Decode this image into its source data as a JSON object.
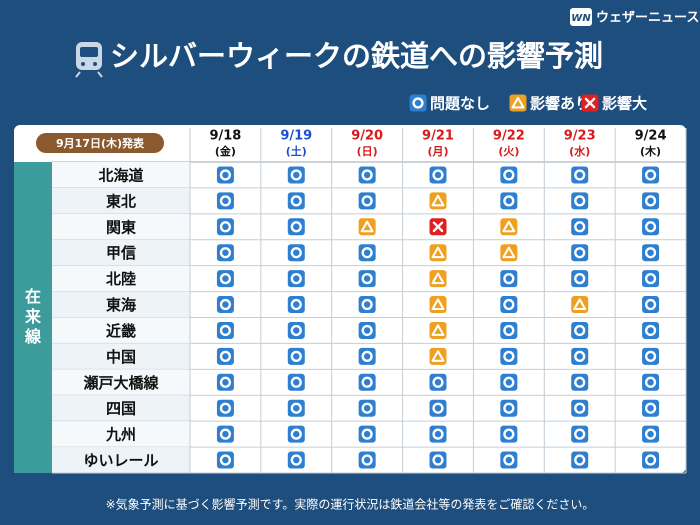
{
  "header": {
    "brand_logo": "WN",
    "brand": "ウェザーニュース",
    "title": "シルバーウィークの鉄道への影響予測"
  },
  "legend": [
    {
      "label": "問題なし",
      "color": "#2f7fd0"
    },
    {
      "label": "影響あり",
      "color": "#f0a020"
    },
    {
      "label": "影響大",
      "color": "#e02020"
    }
  ],
  "table": {
    "issued": "9月17日(木)発表",
    "section": "在来線",
    "columns": [
      {
        "date": "9/18",
        "weekday": "(金)",
        "color": "#111111"
      },
      {
        "date": "9/19",
        "weekday": "(土)",
        "color": "#1a4fd0"
      },
      {
        "date": "9/20",
        "weekday": "(日)",
        "color": "#d81a1a"
      },
      {
        "date": "9/21",
        "weekday": "(月)",
        "color": "#d81a1a"
      },
      {
        "date": "9/22",
        "weekday": "(火)",
        "color": "#d81a1a"
      },
      {
        "date": "9/23",
        "weekday": "(水)",
        "color": "#d81a1a"
      },
      {
        "date": "9/24",
        "weekday": "(木)",
        "color": "#111111"
      }
    ],
    "rows": [
      {
        "name": "北海道",
        "cells": [
          "問題なし",
          "問題なし",
          "問題なし",
          "問題なし",
          "問題なし",
          "問題なし",
          "問題なし"
        ]
      },
      {
        "name": "東北",
        "cells": [
          "問題なし",
          "問題なし",
          "問題なし",
          "影響あり",
          "問題なし",
          "問題なし",
          "問題なし"
        ]
      },
      {
        "name": "関東",
        "cells": [
          "問題なし",
          "問題なし",
          "影響あり",
          "影響大",
          "影響あり",
          "問題なし",
          "問題なし"
        ]
      },
      {
        "name": "甲信",
        "cells": [
          "問題なし",
          "問題なし",
          "問題なし",
          "影響あり",
          "影響あり",
          "問題なし",
          "問題なし"
        ]
      },
      {
        "name": "北陸",
        "cells": [
          "問題なし",
          "問題なし",
          "問題なし",
          "影響あり",
          "問題なし",
          "問題なし",
          "問題なし"
        ]
      },
      {
        "name": "東海",
        "cells": [
          "問題なし",
          "問題なし",
          "問題なし",
          "影響あり",
          "問題なし",
          "影響あり",
          "問題なし"
        ]
      },
      {
        "name": "近畿",
        "cells": [
          "問題なし",
          "問題なし",
          "問題なし",
          "影響あり",
          "問題なし",
          "問題なし",
          "問題なし"
        ]
      },
      {
        "name": "中国",
        "cells": [
          "問題なし",
          "問題なし",
          "問題なし",
          "影響あり",
          "問題なし",
          "問題なし",
          "問題なし"
        ]
      },
      {
        "name": "瀬戸大橋線",
        "cells": [
          "問題なし",
          "問題なし",
          "問題なし",
          "問題なし",
          "問題なし",
          "問題なし",
          "問題なし"
        ]
      },
      {
        "name": "四国",
        "cells": [
          "問題なし",
          "問題なし",
          "問題なし",
          "問題なし",
          "問題なし",
          "問題なし",
          "問題なし"
        ]
      },
      {
        "name": "九州",
        "cells": [
          "問題なし",
          "問題なし",
          "問題なし",
          "問題なし",
          "問題なし",
          "問題なし",
          "問題なし"
        ]
      },
      {
        "name": "ゆいレール",
        "cells": [
          "問題なし",
          "問題なし",
          "問題なし",
          "問題なし",
          "問題なし",
          "問題なし",
          "問題なし"
        ]
      }
    ]
  },
  "footnote": "※気象予測に基づく影響予測です。実際の運行状況は鉄道会社等の発表をご確認ください。"
}
